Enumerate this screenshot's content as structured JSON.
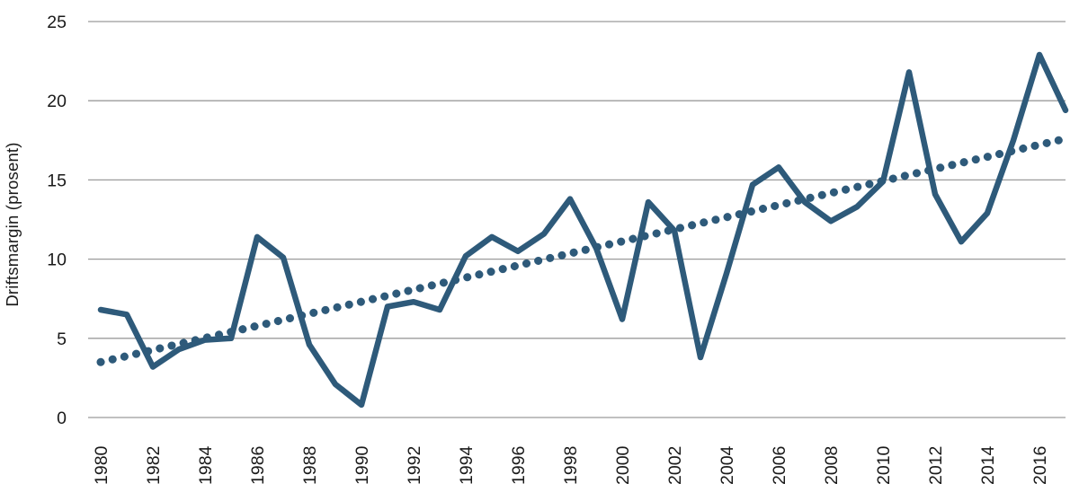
{
  "chart_data": {
    "type": "line",
    "title": "",
    "xlabel": "",
    "ylabel": "Driftsmargin (prosent)",
    "ylim": [
      0,
      25
    ],
    "yticks": [
      "0",
      "5",
      "10",
      "15",
      "20",
      "25"
    ],
    "ytick_values": [
      0,
      5,
      10,
      15,
      20,
      25
    ],
    "xtick_years": [
      1980,
      1982,
      1984,
      1986,
      1988,
      1990,
      1992,
      1994,
      1996,
      1998,
      2000,
      2002,
      2004,
      2006,
      2008,
      2010,
      2012,
      2014,
      2016
    ],
    "grid": "horizontal",
    "legend": "none",
    "years": [
      1980,
      1981,
      1982,
      1983,
      1984,
      1985,
      1986,
      1987,
      1988,
      1989,
      1990,
      1991,
      1992,
      1993,
      1994,
      1995,
      1996,
      1997,
      1998,
      1999,
      2000,
      2001,
      2002,
      2003,
      2004,
      2005,
      2006,
      2007,
      2008,
      2009,
      2010,
      2011,
      2012,
      2013,
      2014,
      2015,
      2016,
      2017
    ],
    "series": [
      {
        "name": "driftsmargin",
        "style": "solid",
        "values": [
          6.8,
          6.5,
          3.2,
          4.3,
          4.9,
          5.0,
          11.4,
          10.1,
          4.6,
          2.1,
          0.8,
          7.0,
          7.3,
          6.8,
          10.2,
          11.4,
          10.5,
          11.6,
          13.8,
          10.7,
          6.2,
          13.6,
          11.8,
          3.8,
          9.1,
          14.7,
          15.8,
          13.6,
          12.4,
          13.3,
          14.9,
          21.8,
          14.1,
          11.1,
          12.9,
          17.5,
          22.9,
          19.4
        ]
      },
      {
        "name": "trend",
        "style": "dotted",
        "trend_line": {
          "start_year": 1980,
          "start_value": 3.5,
          "end_year": 2017,
          "end_value": 17.6
        }
      }
    ],
    "colors": {
      "accent": "#2e5a7a",
      "grid": "#9b9b9b",
      "text": "#1a1a1a",
      "background": "#ffffff"
    }
  }
}
